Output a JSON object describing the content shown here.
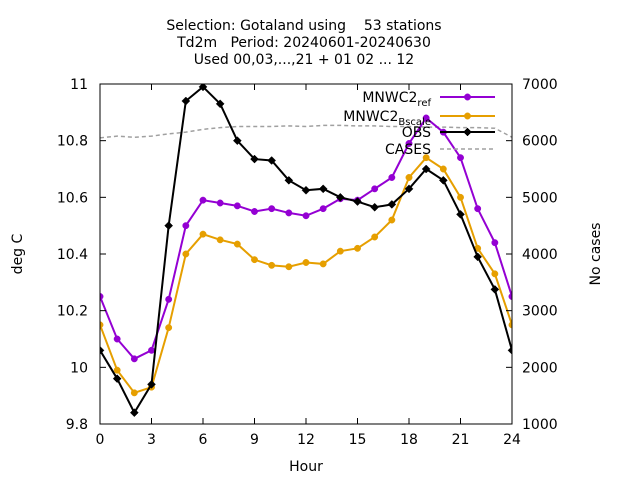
{
  "chart_data": {
    "type": "line",
    "title_lines": [
      "Selection: Gotaland using    53 stations",
      "Td2m   Period: 20240601-20240630",
      "Used 00,03,...,21 + 01 02 ... 12"
    ],
    "xlabel": "Hour",
    "ylabel": "deg C",
    "y2label": "No cases",
    "xlim": [
      0,
      24
    ],
    "ylim": [
      9.8,
      11
    ],
    "y2lim": [
      1000,
      7000
    ],
    "xticks": [
      0,
      3,
      6,
      9,
      12,
      15,
      18,
      21,
      24
    ],
    "yticks": [
      9.8,
      10,
      10.2,
      10.4,
      10.6,
      10.8,
      11
    ],
    "y2ticks": [
      1000,
      2000,
      3000,
      4000,
      5000,
      6000,
      7000
    ],
    "grid": false,
    "legend_position": "top-right",
    "x": [
      0,
      1,
      2,
      3,
      4,
      5,
      6,
      7,
      8,
      9,
      10,
      11,
      12,
      13,
      14,
      15,
      16,
      17,
      18,
      19,
      20,
      21,
      22,
      23,
      24
    ],
    "series": [
      {
        "name": "MNWC2",
        "name_sub": "ref",
        "color": "#9400d3",
        "marker": "circle",
        "axis": "y1",
        "values": [
          10.25,
          10.1,
          10.03,
          10.06,
          10.24,
          10.5,
          10.59,
          10.58,
          10.57,
          10.55,
          10.56,
          10.545,
          10.535,
          10.56,
          10.595,
          10.59,
          10.63,
          10.67,
          10.79,
          10.88,
          10.83,
          10.74,
          10.56,
          10.44,
          10.25
        ]
      },
      {
        "name": "MNWC2",
        "name_sub": "Bscale",
        "color": "#e69f00",
        "marker": "circle",
        "axis": "y1",
        "values": [
          10.15,
          9.99,
          9.91,
          9.93,
          10.14,
          10.4,
          10.47,
          10.45,
          10.435,
          10.38,
          10.36,
          10.355,
          10.37,
          10.365,
          10.41,
          10.42,
          10.46,
          10.52,
          10.67,
          10.74,
          10.7,
          10.6,
          10.42,
          10.33,
          10.15
        ]
      },
      {
        "name": "OBS",
        "color": "#000000",
        "marker": "diamond",
        "axis": "y1",
        "values": [
          10.06,
          9.96,
          9.84,
          9.94,
          10.5,
          10.94,
          10.99,
          10.93,
          10.8,
          10.735,
          10.73,
          10.66,
          10.625,
          10.63,
          10.6,
          10.585,
          10.565,
          10.575,
          10.63,
          10.7,
          10.66,
          10.54,
          10.39,
          10.275,
          10.06
        ]
      },
      {
        "name": "CASES",
        "color": "#a0a0a0",
        "dash": true,
        "axis": "y2",
        "values": [
          6050,
          6080,
          6060,
          6080,
          6120,
          6150,
          6200,
          6230,
          6250,
          6250,
          6250,
          6260,
          6250,
          6270,
          6270,
          6260,
          6260,
          6250,
          6250,
          6240,
          6240,
          6230,
          6230,
          6220,
          6060
        ]
      }
    ]
  }
}
